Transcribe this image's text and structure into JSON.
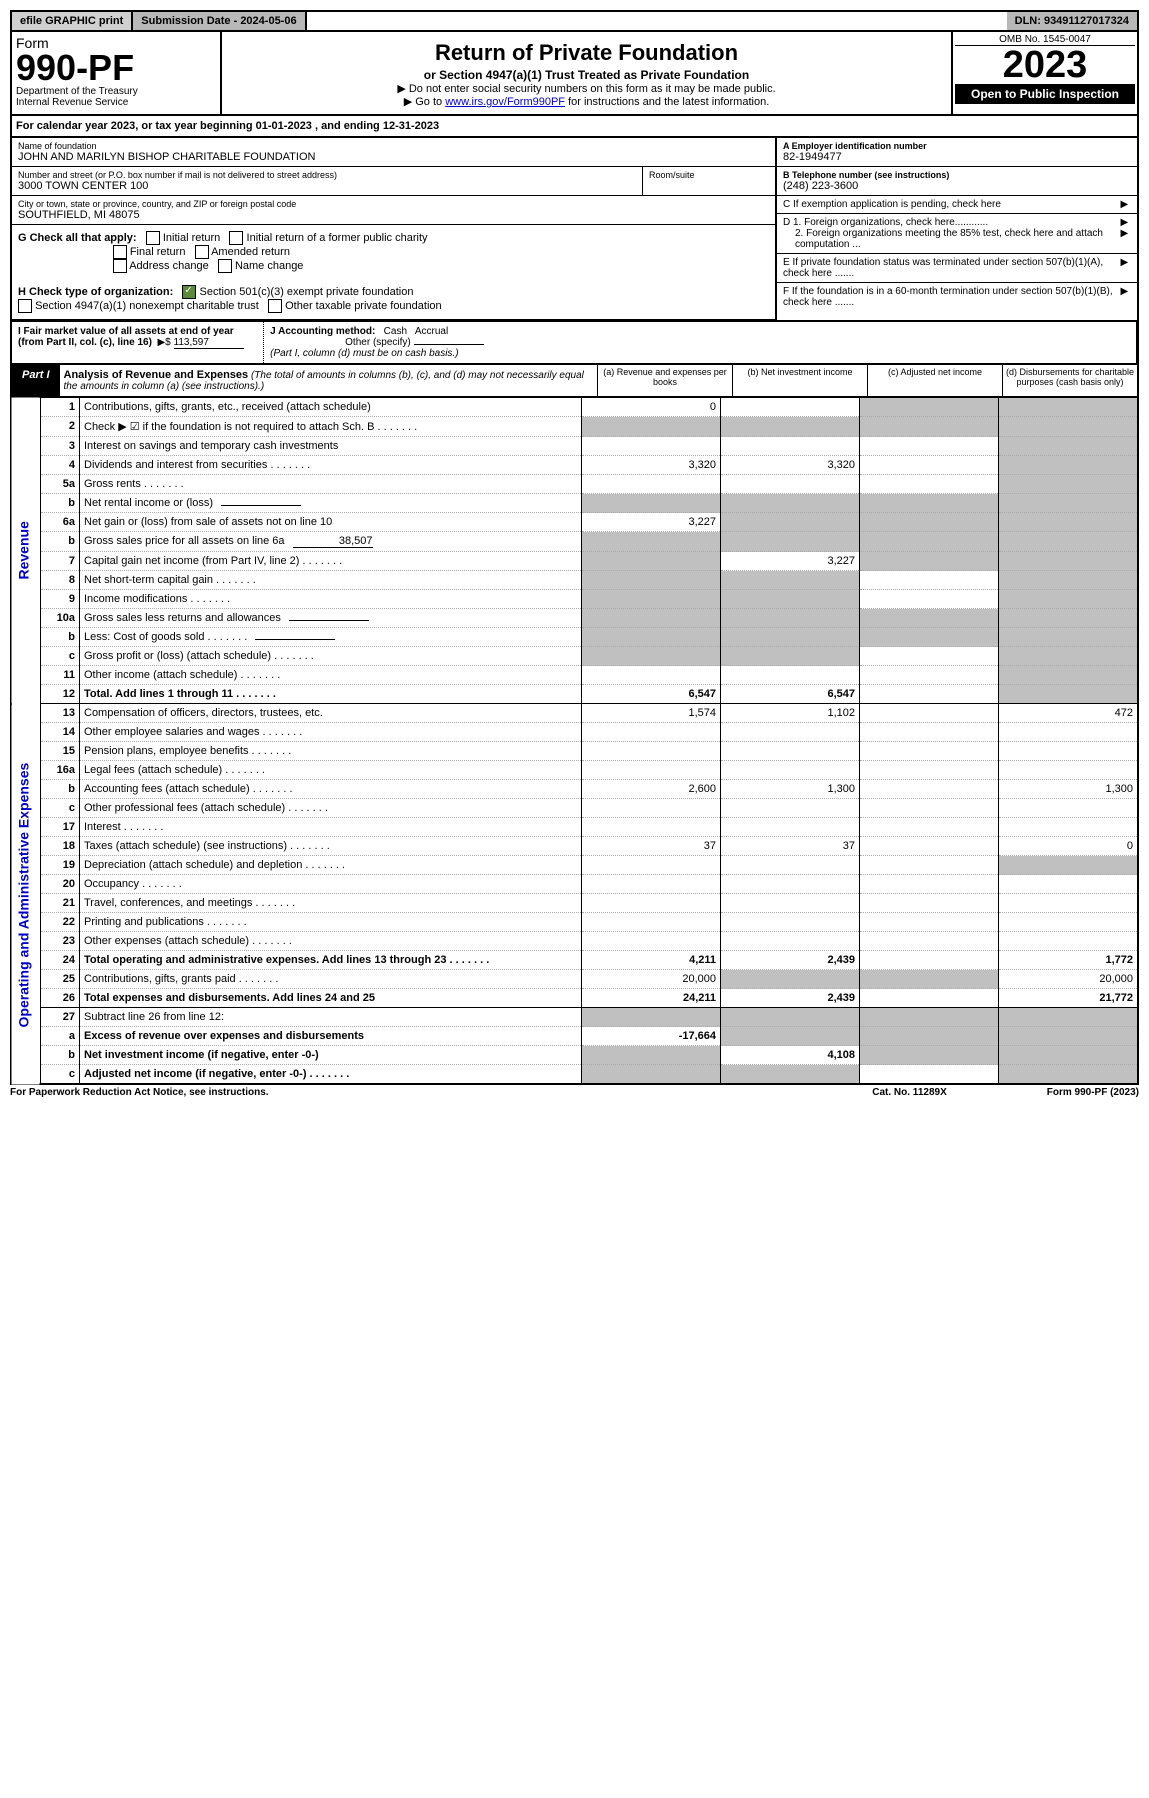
{
  "top": {
    "efile": "efile GRAPHIC print",
    "sub_label": "Submission Date - 2024-05-06",
    "dln": "DLN: 93491127017324"
  },
  "header": {
    "form_label": "Form",
    "form_num": "990-PF",
    "dept": "Department of the Treasury",
    "irs": "Internal Revenue Service",
    "title": "Return of Private Foundation",
    "subtitle": "or Section 4947(a)(1) Trust Treated as Private Foundation",
    "note1": "▶ Do not enter social security numbers on this form as it may be made public.",
    "note2_pre": "▶ Go to ",
    "note2_link": "www.irs.gov/Form990PF",
    "note2_post": " for instructions and the latest information.",
    "omb": "OMB No. 1545-0047",
    "year": "2023",
    "open": "Open to Public Inspection"
  },
  "cal": {
    "text_pre": "For calendar year 2023, or tax year beginning ",
    "begin": "01-01-2023",
    "text_mid": " , and ending ",
    "end": "12-31-2023"
  },
  "entity": {
    "name_label": "Name of foundation",
    "name": "JOHN AND MARILYN BISHOP CHARITABLE FOUNDATION",
    "addr_label": "Number and street (or P.O. box number if mail is not delivered to street address)",
    "addr": "3000 TOWN CENTER 100",
    "room_label": "Room/suite",
    "room": "",
    "city_label": "City or town, state or province, country, and ZIP or foreign postal code",
    "city": "SOUTHFIELD, MI  48075",
    "ein_label": "A Employer identification number",
    "ein": "82-1949477",
    "tel_label": "B Telephone number (see instructions)",
    "tel": "(248) 223-3600",
    "c_label": "C  If exemption application is pending, check here",
    "d1": "D 1. Foreign organizations, check here............",
    "d2": "2. Foreign organizations meeting the 85% test, check here and attach computation ...",
    "e": "E  If private foundation status was terminated under section 507(b)(1)(A), check here .......",
    "f": "F  If the foundation is in a 60-month termination under section 507(b)(1)(B), check here .......",
    "g_label": "G Check all that apply:",
    "g_opts": [
      "Initial return",
      "Initial return of a former public charity",
      "Final return",
      "Amended return",
      "Address change",
      "Name change"
    ],
    "h_label": "H Check type of organization:",
    "h_opt1": "Section 501(c)(3) exempt private foundation",
    "h_opt2": "Section 4947(a)(1) nonexempt charitable trust",
    "h_opt3": "Other taxable private foundation",
    "i_label": "I Fair market value of all assets at end of year (from Part II, col. (c), line 16)",
    "i_val": "113,597",
    "j_label": "J Accounting method:",
    "j_cash": "Cash",
    "j_accrual": "Accrual",
    "j_other": "Other (specify)",
    "j_note": "(Part I, column (d) must be on cash basis.)"
  },
  "part1": {
    "label": "Part I",
    "title": "Analysis of Revenue and Expenses",
    "title_note": "(The total of amounts in columns (b), (c), and (d) may not necessarily equal the amounts in column (a) (see instructions).)",
    "col_a": "(a) Revenue and expenses per books",
    "col_b": "(b) Net investment income",
    "col_c": "(c) Adjusted net income",
    "col_d": "(d) Disbursements for charitable purposes (cash basis only)"
  },
  "side": {
    "rev": "Revenue",
    "exp": "Operating and Administrative Expenses"
  },
  "rows": [
    {
      "n": "1",
      "d": "Contributions, gifts, grants, etc., received (attach schedule)",
      "a": "0",
      "b": "",
      "c": "s",
      "dd": "s"
    },
    {
      "n": "2",
      "d": "Check ▶ ☑ if the foundation is not required to attach Sch. B",
      "dots": true,
      "a": "s",
      "b": "s",
      "c": "s",
      "dd": "s"
    },
    {
      "n": "3",
      "d": "Interest on savings and temporary cash investments",
      "a": "",
      "b": "",
      "c": "",
      "dd": "s"
    },
    {
      "n": "4",
      "d": "Dividends and interest from securities",
      "dots": true,
      "a": "3,320",
      "b": "3,320",
      "c": "",
      "dd": "s"
    },
    {
      "n": "5a",
      "d": "Gross rents",
      "dots": true,
      "a": "",
      "b": "",
      "c": "",
      "dd": "s"
    },
    {
      "n": "b",
      "d": "Net rental income or (loss)",
      "inline": true,
      "a": "s",
      "b": "s",
      "c": "s",
      "dd": "s"
    },
    {
      "n": "6a",
      "d": "Net gain or (loss) from sale of assets not on line 10",
      "a": "3,227",
      "b": "s",
      "c": "s",
      "dd": "s"
    },
    {
      "n": "b",
      "d": "Gross sales price for all assets on line 6a",
      "inline": true,
      "inline_val": "38,507",
      "a": "s",
      "b": "s",
      "c": "s",
      "dd": "s"
    },
    {
      "n": "7",
      "d": "Capital gain net income (from Part IV, line 2)",
      "dots": true,
      "a": "s",
      "b": "3,227",
      "c": "s",
      "dd": "s"
    },
    {
      "n": "8",
      "d": "Net short-term capital gain",
      "dots": true,
      "a": "s",
      "b": "s",
      "c": "",
      "dd": "s"
    },
    {
      "n": "9",
      "d": "Income modifications",
      "dots": true,
      "a": "s",
      "b": "s",
      "c": "",
      "dd": "s"
    },
    {
      "n": "10a",
      "d": "Gross sales less returns and allowances",
      "inline": true,
      "a": "s",
      "b": "s",
      "c": "s",
      "dd": "s"
    },
    {
      "n": "b",
      "d": "Less: Cost of goods sold",
      "dots": true,
      "inline": true,
      "a": "s",
      "b": "s",
      "c": "s",
      "dd": "s"
    },
    {
      "n": "c",
      "d": "Gross profit or (loss) (attach schedule)",
      "dots": true,
      "a": "s",
      "b": "s",
      "c": "",
      "dd": "s"
    },
    {
      "n": "11",
      "d": "Other income (attach schedule)",
      "dots": true,
      "a": "",
      "b": "",
      "c": "",
      "dd": "s"
    },
    {
      "n": "12",
      "d": "Total. Add lines 1 through 11",
      "dots": true,
      "bold": true,
      "a": "6,547",
      "b": "6,547",
      "c": "",
      "dd": "s",
      "sep": true
    },
    {
      "n": "13",
      "d": "Compensation of officers, directors, trustees, etc.",
      "a": "1,574",
      "b": "1,102",
      "c": "",
      "dd": "472"
    },
    {
      "n": "14",
      "d": "Other employee salaries and wages",
      "dots": true,
      "a": "",
      "b": "",
      "c": "",
      "dd": ""
    },
    {
      "n": "15",
      "d": "Pension plans, employee benefits",
      "dots": true,
      "a": "",
      "b": "",
      "c": "",
      "dd": ""
    },
    {
      "n": "16a",
      "d": "Legal fees (attach schedule)",
      "dots": true,
      "a": "",
      "b": "",
      "c": "",
      "dd": ""
    },
    {
      "n": "b",
      "d": "Accounting fees (attach schedule)",
      "dots": true,
      "a": "2,600",
      "b": "1,300",
      "c": "",
      "dd": "1,300"
    },
    {
      "n": "c",
      "d": "Other professional fees (attach schedule)",
      "dots": true,
      "a": "",
      "b": "",
      "c": "",
      "dd": ""
    },
    {
      "n": "17",
      "d": "Interest",
      "dots": true,
      "a": "",
      "b": "",
      "c": "",
      "dd": ""
    },
    {
      "n": "18",
      "d": "Taxes (attach schedule) (see instructions)",
      "dots": true,
      "a": "37",
      "b": "37",
      "c": "",
      "dd": "0"
    },
    {
      "n": "19",
      "d": "Depreciation (attach schedule) and depletion",
      "dots": true,
      "a": "",
      "b": "",
      "c": "",
      "dd": "s"
    },
    {
      "n": "20",
      "d": "Occupancy",
      "dots": true,
      "a": "",
      "b": "",
      "c": "",
      "dd": ""
    },
    {
      "n": "21",
      "d": "Travel, conferences, and meetings",
      "dots": true,
      "a": "",
      "b": "",
      "c": "",
      "dd": ""
    },
    {
      "n": "22",
      "d": "Printing and publications",
      "dots": true,
      "a": "",
      "b": "",
      "c": "",
      "dd": ""
    },
    {
      "n": "23",
      "d": "Other expenses (attach schedule)",
      "dots": true,
      "a": "",
      "b": "",
      "c": "",
      "dd": ""
    },
    {
      "n": "24",
      "d": "Total operating and administrative expenses. Add lines 13 through 23",
      "dots": true,
      "bold": true,
      "a": "4,211",
      "b": "2,439",
      "c": "",
      "dd": "1,772"
    },
    {
      "n": "25",
      "d": "Contributions, gifts, grants paid",
      "dots": true,
      "a": "20,000",
      "b": "s",
      "c": "s",
      "dd": "20,000"
    },
    {
      "n": "26",
      "d": "Total expenses and disbursements. Add lines 24 and 25",
      "bold": true,
      "a": "24,211",
      "b": "2,439",
      "c": "",
      "dd": "21,772",
      "sep": true
    },
    {
      "n": "27",
      "d": "Subtract line 26 from line 12:",
      "a": "s",
      "b": "s",
      "c": "s",
      "dd": "s"
    },
    {
      "n": "a",
      "d": "Excess of revenue over expenses and disbursements",
      "bold": true,
      "a": "-17,664",
      "b": "s",
      "c": "s",
      "dd": "s"
    },
    {
      "n": "b",
      "d": "Net investment income (if negative, enter -0-)",
      "bold": true,
      "a": "s",
      "b": "4,108",
      "c": "s",
      "dd": "s"
    },
    {
      "n": "c",
      "d": "Adjusted net income (if negative, enter -0-)",
      "dots": true,
      "bold": true,
      "a": "s",
      "b": "s",
      "c": "",
      "dd": "s"
    }
  ],
  "footer": {
    "left": "For Paperwork Reduction Act Notice, see instructions.",
    "mid": "Cat. No. 11289X",
    "right": "Form 990-PF (2023)"
  }
}
